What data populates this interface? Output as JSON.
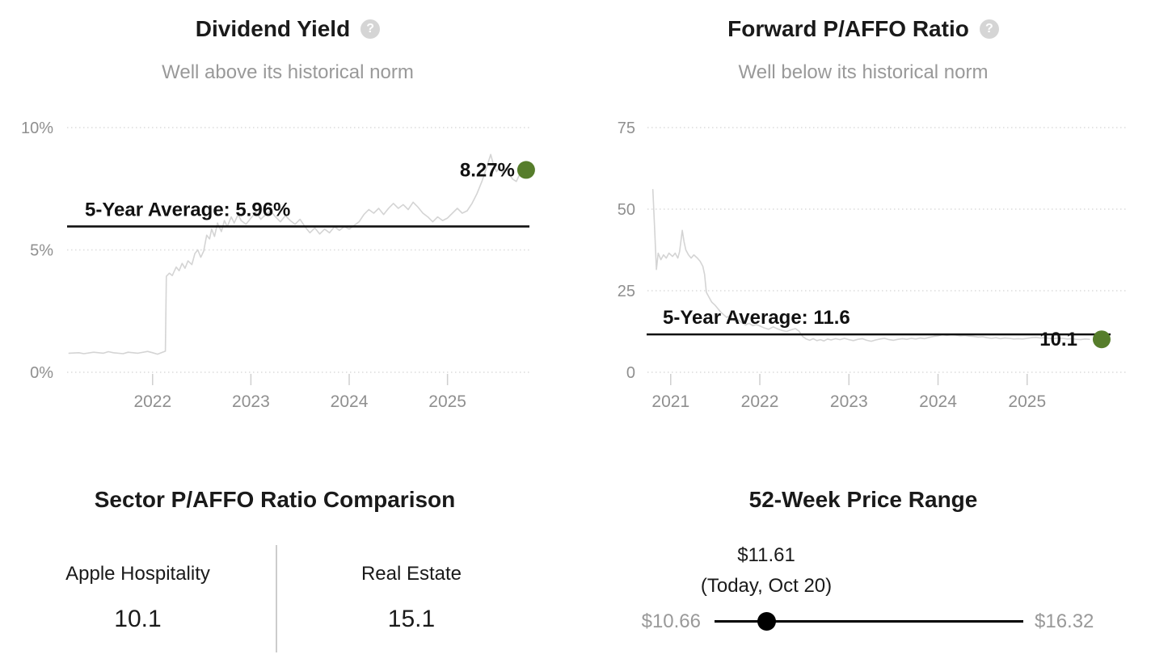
{
  "colors": {
    "text": "#1a1a1a",
    "annotation": "#111111",
    "muted_text": "#999999",
    "axis_text": "#8f8f8f",
    "grid_gray": "#dcdcdc",
    "tick_gray": "#cfcfcf",
    "series_gray": "#d4d4d4",
    "accent_green": "#567d2b",
    "help_icon_bg": "#d5d5d5",
    "slider_black": "#000000"
  },
  "icons": {
    "help": "?"
  },
  "panels": {
    "sector_comparison": {
      "title": "Sector P/AFFO Ratio Comparison",
      "items": [
        {
          "label": "Apple Hospitality",
          "value": "10.1"
        },
        {
          "label": "Real Estate",
          "value": "15.1"
        }
      ]
    },
    "price_range": {
      "title": "52-Week Price Range",
      "current_price": "$11.61",
      "current_date": "(Today, Oct 20)",
      "low": "$10.66",
      "high": "$16.32",
      "low_value": 10.66,
      "high_value": 16.32,
      "current_value": 11.61
    }
  },
  "chart_data": [
    {
      "type": "line",
      "title": "Dividend Yield",
      "subtitle": "Well above its historical norm",
      "x_range": [
        2021.13,
        2025.85
      ],
      "y_range": [
        0,
        10
      ],
      "x_ticks": [
        "2022",
        "2023",
        "2024",
        "2025"
      ],
      "x_tick_values": [
        2022,
        2023,
        2024,
        2025
      ],
      "y_ticks": [
        {
          "value": 10,
          "label": "10%"
        },
        {
          "value": 5,
          "label": "5%"
        },
        {
          "value": 0,
          "label": "0%"
        }
      ],
      "grid": "horizontal-dotted",
      "legend": "none",
      "average": {
        "value": 5.96,
        "label": "5-Year Average: 5.96%"
      },
      "current": {
        "value": 8.27,
        "label": "8.27%"
      },
      "series": [
        {
          "name": "Dividend Yield",
          "points": [
            [
              2021.15,
              0.78
            ],
            [
              2021.25,
              0.8
            ],
            [
              2021.3,
              0.76
            ],
            [
              2021.4,
              0.82
            ],
            [
              2021.5,
              0.78
            ],
            [
              2021.55,
              0.84
            ],
            [
              2021.6,
              0.8
            ],
            [
              2021.7,
              0.76
            ],
            [
              2021.75,
              0.82
            ],
            [
              2021.85,
              0.78
            ],
            [
              2021.95,
              0.85
            ],
            [
              2022.0,
              0.8
            ],
            [
              2022.05,
              0.74
            ],
            [
              2022.1,
              0.82
            ],
            [
              2022.13,
              0.86
            ],
            [
              2022.14,
              3.92
            ],
            [
              2022.17,
              4.05
            ],
            [
              2022.2,
              3.95
            ],
            [
              2022.24,
              4.3
            ],
            [
              2022.27,
              4.15
            ],
            [
              2022.3,
              4.45
            ],
            [
              2022.33,
              4.25
            ],
            [
              2022.36,
              4.55
            ],
            [
              2022.4,
              4.4
            ],
            [
              2022.43,
              4.85
            ],
            [
              2022.46,
              5.0
            ],
            [
              2022.49,
              4.7
            ],
            [
              2022.52,
              4.95
            ],
            [
              2022.55,
              5.6
            ],
            [
              2022.58,
              5.45
            ],
            [
              2022.6,
              5.85
            ],
            [
              2022.63,
              5.55
            ],
            [
              2022.66,
              6.1
            ],
            [
              2022.7,
              5.75
            ],
            [
              2022.73,
              6.2
            ],
            [
              2022.76,
              5.95
            ],
            [
              2022.8,
              6.35
            ],
            [
              2022.83,
              6.1
            ],
            [
              2022.87,
              6.45
            ],
            [
              2022.9,
              6.2
            ],
            [
              2022.95,
              6.05
            ],
            [
              2023.0,
              6.3
            ],
            [
              2023.05,
              6.55
            ],
            [
              2023.1,
              6.25
            ],
            [
              2023.15,
              6.45
            ],
            [
              2023.2,
              6.6
            ],
            [
              2023.25,
              6.35
            ],
            [
              2023.3,
              6.15
            ],
            [
              2023.35,
              6.4
            ],
            [
              2023.4,
              6.2
            ],
            [
              2023.45,
              6.05
            ],
            [
              2023.5,
              6.25
            ],
            [
              2023.55,
              5.95
            ],
            [
              2023.6,
              5.7
            ],
            [
              2023.65,
              5.9
            ],
            [
              2023.7,
              5.65
            ],
            [
              2023.75,
              5.85
            ],
            [
              2023.8,
              5.7
            ],
            [
              2023.85,
              5.95
            ],
            [
              2023.9,
              5.8
            ],
            [
              2023.95,
              5.95
            ],
            [
              2024.0,
              5.85
            ],
            [
              2024.05,
              6.0
            ],
            [
              2024.1,
              6.15
            ],
            [
              2024.15,
              6.45
            ],
            [
              2024.2,
              6.65
            ],
            [
              2024.25,
              6.5
            ],
            [
              2024.3,
              6.7
            ],
            [
              2024.35,
              6.45
            ],
            [
              2024.4,
              6.7
            ],
            [
              2024.45,
              6.9
            ],
            [
              2024.5,
              6.7
            ],
            [
              2024.55,
              6.85
            ],
            [
              2024.6,
              6.65
            ],
            [
              2024.65,
              6.95
            ],
            [
              2024.7,
              6.75
            ],
            [
              2024.75,
              6.5
            ],
            [
              2024.8,
              6.35
            ],
            [
              2024.85,
              6.15
            ],
            [
              2024.9,
              6.35
            ],
            [
              2024.95,
              6.2
            ],
            [
              2025.0,
              6.3
            ],
            [
              2025.05,
              6.5
            ],
            [
              2025.1,
              6.7
            ],
            [
              2025.15,
              6.5
            ],
            [
              2025.2,
              6.6
            ],
            [
              2025.25,
              6.9
            ],
            [
              2025.3,
              7.3
            ],
            [
              2025.35,
              7.8
            ],
            [
              2025.4,
              8.4
            ],
            [
              2025.44,
              8.9
            ],
            [
              2025.47,
              8.45
            ],
            [
              2025.5,
              8.2
            ],
            [
              2025.53,
              8.4
            ],
            [
              2025.56,
              8.15
            ],
            [
              2025.6,
              8.35
            ],
            [
              2025.63,
              8.1
            ],
            [
              2025.66,
              7.9
            ],
            [
              2025.7,
              7.8
            ],
            [
              2025.73,
              8.05
            ],
            [
              2025.76,
              8.15
            ],
            [
              2025.8,
              8.27
            ]
          ]
        }
      ]
    },
    {
      "type": "line",
      "title": "Forward P/AFFO Ratio",
      "subtitle": "Well below its historical norm",
      "x_range": [
        2020.73,
        2025.9
      ],
      "y_range": [
        0,
        75
      ],
      "x_ticks": [
        "2021",
        "2022",
        "2023",
        "2024",
        "2025"
      ],
      "x_tick_values": [
        2021,
        2022,
        2023,
        2024,
        2025
      ],
      "y_ticks": [
        {
          "value": 75,
          "label": "75"
        },
        {
          "value": 50,
          "label": "50"
        },
        {
          "value": 25,
          "label": "25"
        },
        {
          "value": 0,
          "label": "0"
        }
      ],
      "grid": "horizontal-dotted",
      "legend": "none",
      "average": {
        "value": 11.6,
        "label": "5-Year Average: 11.6"
      },
      "current": {
        "value": 10.1,
        "label": "10.1"
      },
      "series": [
        {
          "name": "Forward P/AFFO Ratio",
          "points": [
            [
              2020.8,
              56.0
            ],
            [
              2020.82,
              44.0
            ],
            [
              2020.84,
              31.5
            ],
            [
              2020.86,
              36.5
            ],
            [
              2020.89,
              34.5
            ],
            [
              2020.92,
              36.0
            ],
            [
              2020.95,
              35.0
            ],
            [
              2020.98,
              36.5
            ],
            [
              2021.02,
              35.5
            ],
            [
              2021.05,
              36.5
            ],
            [
              2021.08,
              35.0
            ],
            [
              2021.1,
              37.0
            ],
            [
              2021.13,
              43.5
            ],
            [
              2021.15,
              40.0
            ],
            [
              2021.17,
              37.5
            ],
            [
              2021.2,
              36.0
            ],
            [
              2021.23,
              35.0
            ],
            [
              2021.26,
              36.0
            ],
            [
              2021.3,
              35.0
            ],
            [
              2021.33,
              34.0
            ],
            [
              2021.36,
              32.5
            ],
            [
              2021.38,
              30.0
            ],
            [
              2021.4,
              24.5
            ],
            [
              2021.43,
              23.0
            ],
            [
              2021.46,
              21.5
            ],
            [
              2021.5,
              20.5
            ],
            [
              2021.53,
              19.5
            ],
            [
              2021.56,
              18.5
            ],
            [
              2021.6,
              17.5
            ],
            [
              2021.63,
              16.8
            ],
            [
              2021.66,
              17.3
            ],
            [
              2021.7,
              16.2
            ],
            [
              2021.73,
              15.5
            ],
            [
              2021.76,
              16.0
            ],
            [
              2021.8,
              15.2
            ],
            [
              2021.84,
              14.5
            ],
            [
              2021.88,
              15.0
            ],
            [
              2021.92,
              14.3
            ],
            [
              2021.96,
              14.6
            ],
            [
              2022.0,
              14.2
            ],
            [
              2022.05,
              13.6
            ],
            [
              2022.1,
              13.2
            ],
            [
              2022.15,
              13.9
            ],
            [
              2022.2,
              13.3
            ],
            [
              2022.25,
              12.8
            ],
            [
              2022.3,
              12.5
            ],
            [
              2022.35,
              13.0
            ],
            [
              2022.4,
              13.4
            ],
            [
              2022.44,
              12.6
            ],
            [
              2022.48,
              11.0
            ],
            [
              2022.52,
              10.2
            ],
            [
              2022.56,
              9.8
            ],
            [
              2022.6,
              10.3
            ],
            [
              2022.64,
              9.7
            ],
            [
              2022.68,
              10.0
            ],
            [
              2022.72,
              9.6
            ],
            [
              2022.76,
              10.2
            ],
            [
              2022.8,
              9.9
            ],
            [
              2022.85,
              10.3
            ],
            [
              2022.9,
              10.0
            ],
            [
              2022.95,
              10.4
            ],
            [
              2023.0,
              10.0
            ],
            [
              2023.05,
              9.7
            ],
            [
              2023.1,
              10.1
            ],
            [
              2023.15,
              10.3
            ],
            [
              2023.2,
              9.8
            ],
            [
              2023.25,
              9.5
            ],
            [
              2023.3,
              9.9
            ],
            [
              2023.35,
              10.2
            ],
            [
              2023.4,
              10.4
            ],
            [
              2023.45,
              10.0
            ],
            [
              2023.5,
              9.8
            ],
            [
              2023.55,
              10.1
            ],
            [
              2023.6,
              10.3
            ],
            [
              2023.65,
              10.1
            ],
            [
              2023.7,
              10.4
            ],
            [
              2023.75,
              10.2
            ],
            [
              2023.8,
              10.5
            ],
            [
              2023.85,
              10.3
            ],
            [
              2023.9,
              10.7
            ],
            [
              2023.95,
              11.0
            ],
            [
              2024.0,
              11.2
            ],
            [
              2024.05,
              11.5
            ],
            [
              2024.1,
              11.3
            ],
            [
              2024.15,
              11.5
            ],
            [
              2024.2,
              11.4
            ],
            [
              2024.25,
              11.2
            ],
            [
              2024.3,
              11.3
            ],
            [
              2024.35,
              11.1
            ],
            [
              2024.4,
              11.0
            ],
            [
              2024.45,
              10.8
            ],
            [
              2024.5,
              10.9
            ],
            [
              2024.55,
              10.6
            ],
            [
              2024.6,
              10.4
            ],
            [
              2024.65,
              10.6
            ],
            [
              2024.7,
              10.3
            ],
            [
              2024.75,
              10.5
            ],
            [
              2024.8,
              10.4
            ],
            [
              2024.85,
              10.2
            ],
            [
              2024.9,
              10.3
            ],
            [
              2024.95,
              10.2
            ],
            [
              2025.0,
              10.4
            ],
            [
              2025.05,
              10.6
            ],
            [
              2025.1,
              10.7
            ],
            [
              2025.15,
              10.5
            ],
            [
              2025.2,
              10.6
            ],
            [
              2025.25,
              10.4
            ],
            [
              2025.3,
              10.3
            ],
            [
              2025.35,
              10.5
            ],
            [
              2025.4,
              10.4
            ],
            [
              2025.45,
              10.2
            ],
            [
              2025.5,
              10.3
            ],
            [
              2025.55,
              10.1
            ],
            [
              2025.6,
              10.0
            ],
            [
              2025.65,
              10.2
            ],
            [
              2025.7,
              10.1
            ]
          ]
        }
      ]
    }
  ]
}
